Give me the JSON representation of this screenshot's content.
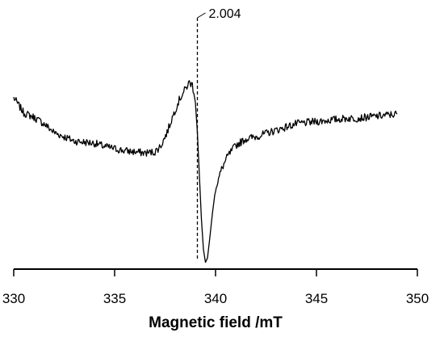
{
  "chart_data": {
    "type": "line",
    "title": "",
    "xlabel": "Magnetic field /mT",
    "ylabel": "",
    "xlim": [
      330,
      350
    ],
    "xticks": [
      330,
      335,
      340,
      345,
      350
    ],
    "ylim": [
      0,
      1
    ],
    "grid": false,
    "legend": "none",
    "line_color": "#000000",
    "annotation": {
      "text": "2.004",
      "x": 339.1
    },
    "series": [
      {
        "name": "",
        "points": [
          [
            330.0,
            0.78
          ],
          [
            330.5,
            0.71
          ],
          [
            331.0,
            0.69
          ],
          [
            331.5,
            0.66
          ],
          [
            332.0,
            0.62
          ],
          [
            332.5,
            0.6
          ],
          [
            333.0,
            0.58
          ],
          [
            333.5,
            0.575
          ],
          [
            334.0,
            0.57
          ],
          [
            334.5,
            0.555
          ],
          [
            335.0,
            0.545
          ],
          [
            335.5,
            0.535
          ],
          [
            336.0,
            0.53
          ],
          [
            336.5,
            0.525
          ],
          [
            337.0,
            0.53
          ],
          [
            337.3,
            0.56
          ],
          [
            337.6,
            0.62
          ],
          [
            337.9,
            0.7
          ],
          [
            338.2,
            0.77
          ],
          [
            338.5,
            0.82
          ],
          [
            338.7,
            0.85
          ],
          [
            338.85,
            0.84
          ],
          [
            339.0,
            0.76
          ],
          [
            339.1,
            0.62
          ],
          [
            339.2,
            0.42
          ],
          [
            339.3,
            0.22
          ],
          [
            339.4,
            0.08
          ],
          [
            339.5,
            0.02
          ],
          [
            339.6,
            0.04
          ],
          [
            339.7,
            0.12
          ],
          [
            339.85,
            0.25
          ],
          [
            340.0,
            0.36
          ],
          [
            340.3,
            0.45
          ],
          [
            340.6,
            0.51
          ],
          [
            341.0,
            0.56
          ],
          [
            341.5,
            0.59
          ],
          [
            342.0,
            0.6
          ],
          [
            342.5,
            0.615
          ],
          [
            343.0,
            0.63
          ],
          [
            343.5,
            0.645
          ],
          [
            344.0,
            0.66
          ],
          [
            344.5,
            0.665
          ],
          [
            345.0,
            0.67
          ],
          [
            345.5,
            0.675
          ],
          [
            346.0,
            0.68
          ],
          [
            346.5,
            0.685
          ],
          [
            347.0,
            0.685
          ],
          [
            347.5,
            0.69
          ],
          [
            348.0,
            0.695
          ],
          [
            348.5,
            0.7
          ],
          [
            349.0,
            0.705
          ]
        ]
      }
    ]
  }
}
